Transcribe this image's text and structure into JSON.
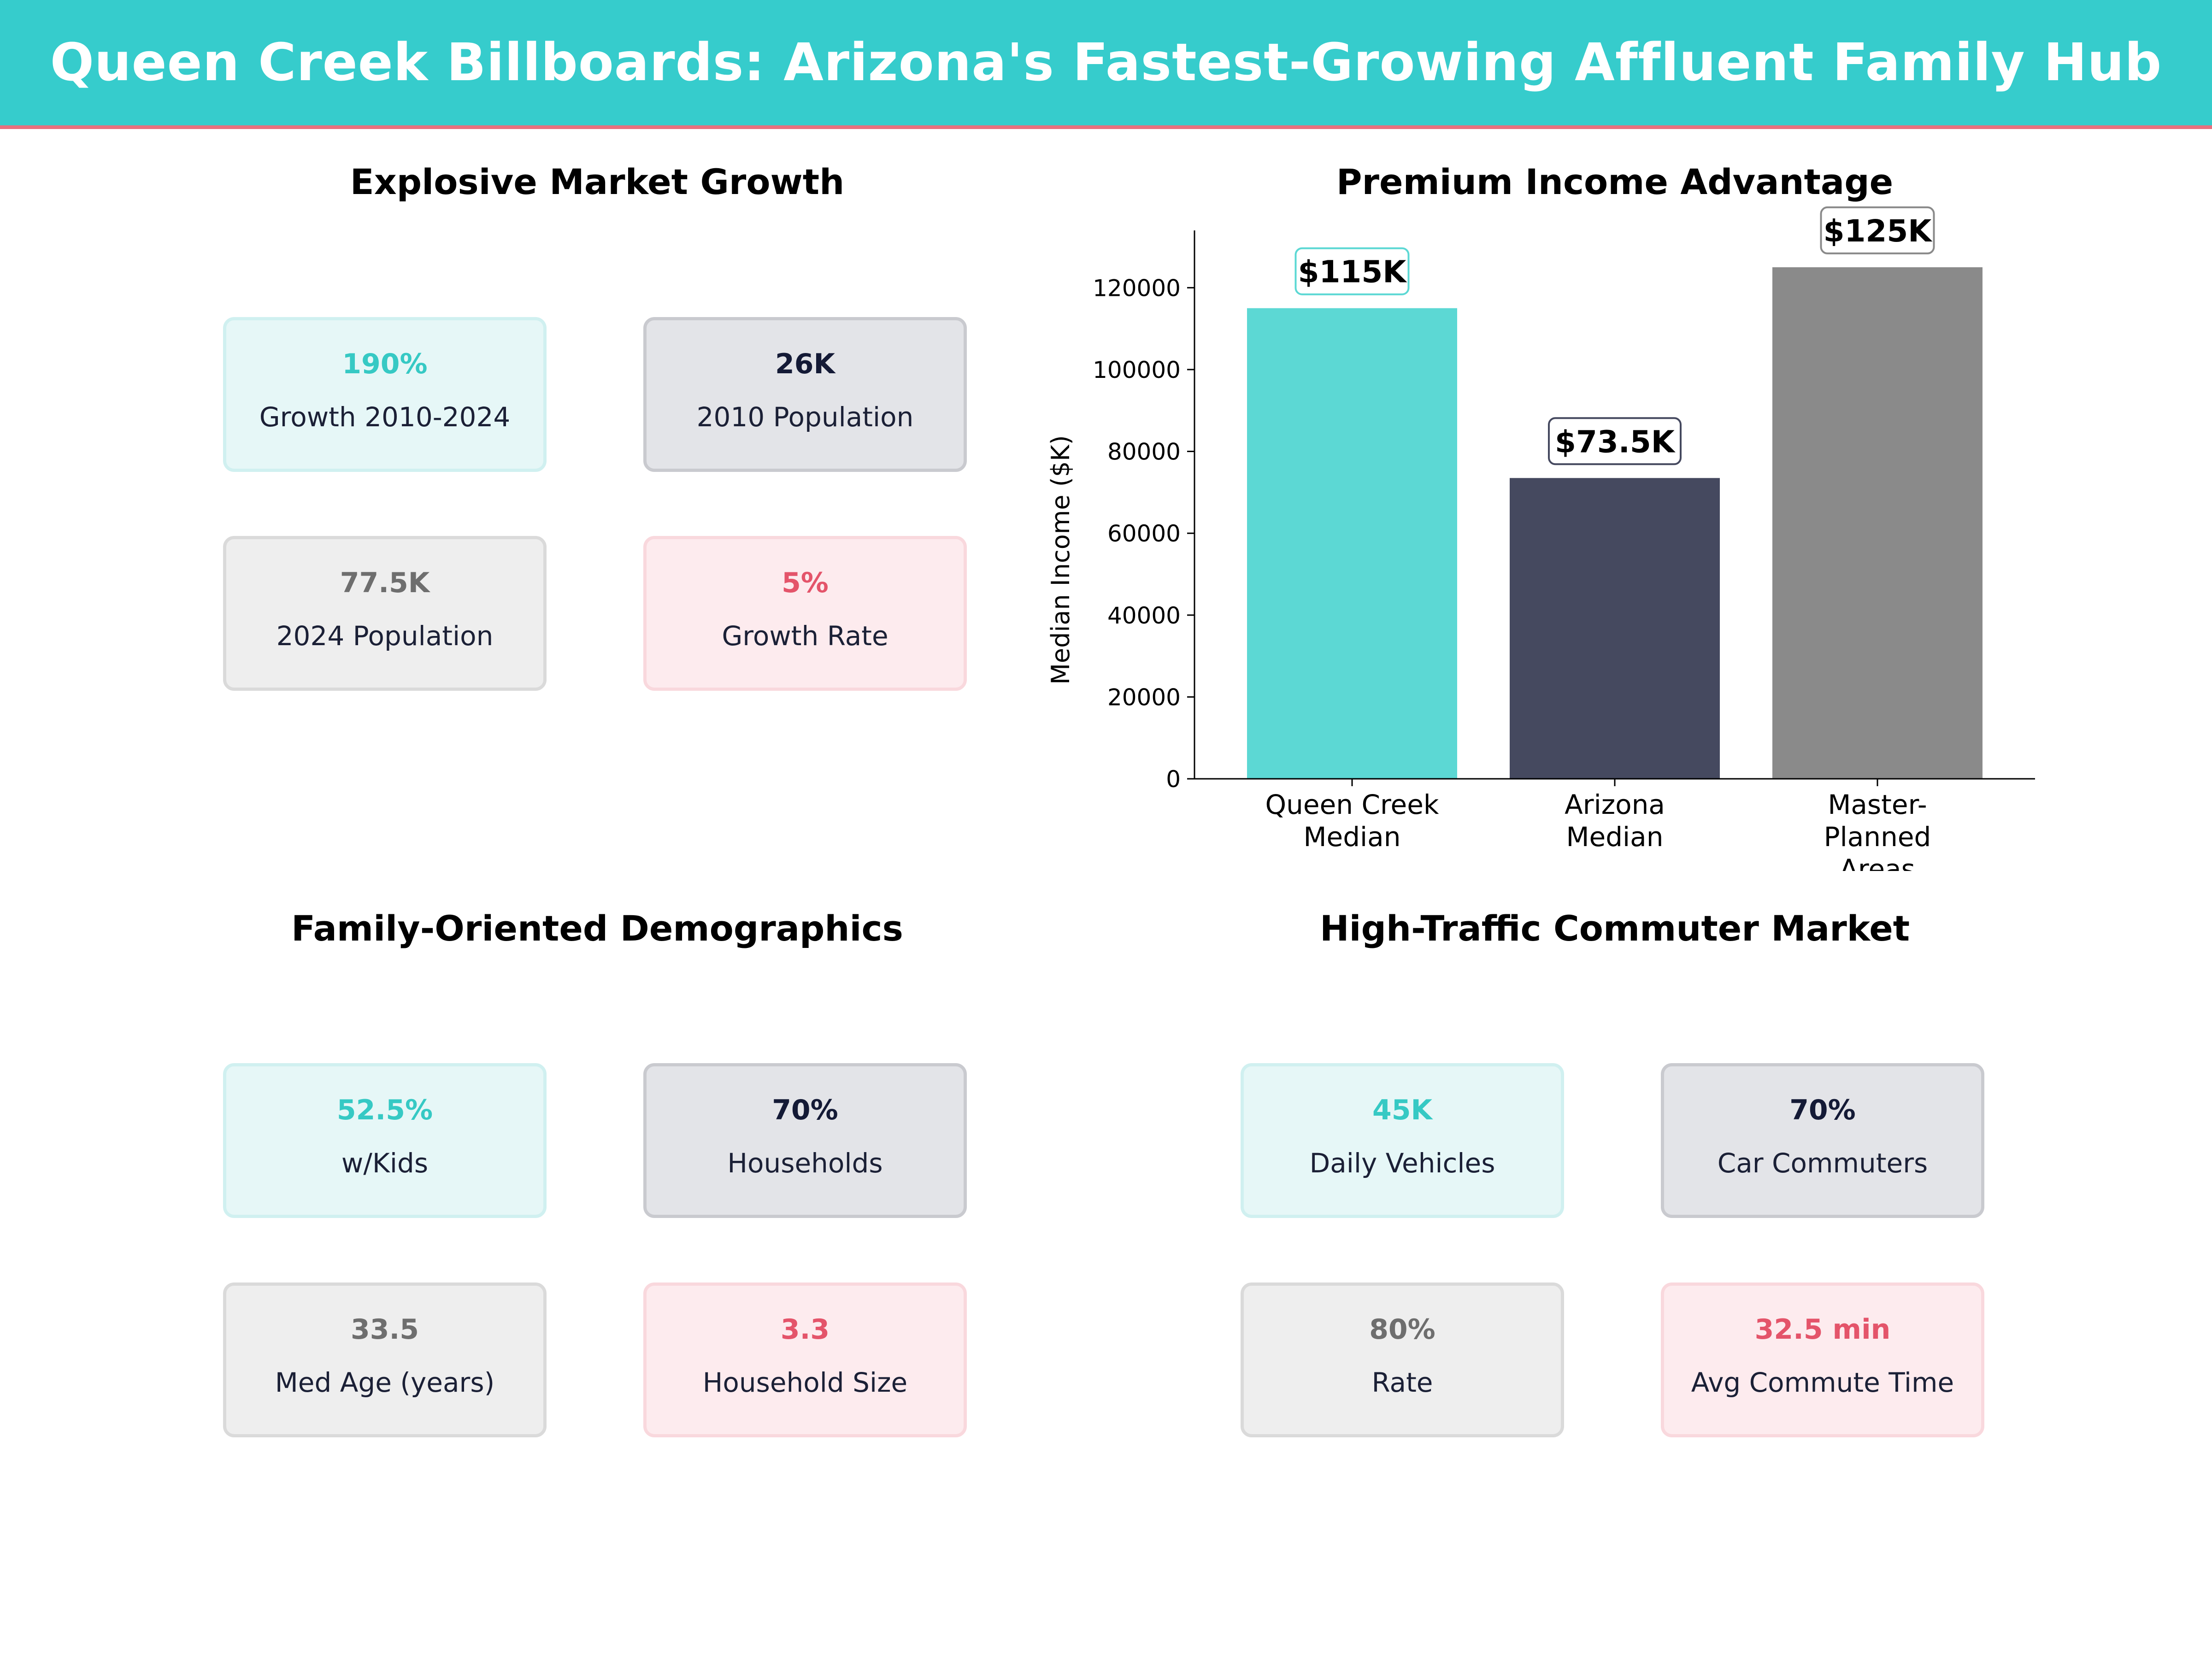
{
  "page_title": "Queen Creek Billboards: Arizona's Fastest-Growing Affluent Family Hub",
  "colors": {
    "banner": "#36cccc",
    "banner_accent_line": "#e8707e",
    "teal": "#5cd8d4",
    "navy": "#45495f",
    "gray": "#8a8a8a",
    "pink": "#e4546a"
  },
  "sections": {
    "growth": {
      "title": "Explosive Market Growth",
      "cards": [
        {
          "value": "190%",
          "label": "Growth 2010-2024"
        },
        {
          "value": "26K",
          "label": "2010 Population"
        },
        {
          "value": "77.5K",
          "label": "2024 Population"
        },
        {
          "value": "5%",
          "label": "Growth Rate"
        }
      ]
    },
    "income": {
      "title": "Premium Income Advantage"
    },
    "demographics": {
      "title": "Family-Oriented Demographics",
      "cards": [
        {
          "value": "52.5%",
          "label": "w/Kids"
        },
        {
          "value": "70%",
          "label": "Households"
        },
        {
          "value": "33.5",
          "label": "Med Age (years)"
        },
        {
          "value": "3.3",
          "label": "Household Size"
        }
      ]
    },
    "commuter": {
      "title": "High-Traffic Commuter Market",
      "cards": [
        {
          "value": "45K",
          "label": "Daily Vehicles"
        },
        {
          "value": "70%",
          "label": "Car Commuters"
        },
        {
          "value": "80%",
          "label": "Rate"
        },
        {
          "value": "32.5 min",
          "label": "Avg Commute Time"
        }
      ]
    }
  },
  "chart_data": {
    "type": "bar",
    "title": "Premium Income Advantage",
    "xlabel": "",
    "ylabel": "Median Income ($K)",
    "ylim": [
      0,
      134000
    ],
    "yticks": [
      0,
      20000,
      40000,
      60000,
      80000,
      100000,
      120000
    ],
    "grid": false,
    "categories": [
      [
        "Queen Creek",
        "Median"
      ],
      [
        "Arizona",
        "Median"
      ],
      [
        "Master-",
        "Planned",
        "Areas"
      ]
    ],
    "values": [
      115000,
      73500,
      125000
    ],
    "data_labels": [
      "$115K",
      "$73.5K",
      "$125K"
    ],
    "bar_colors": [
      "#5cd8d4",
      "#45495f",
      "#8a8a8a"
    ]
  }
}
